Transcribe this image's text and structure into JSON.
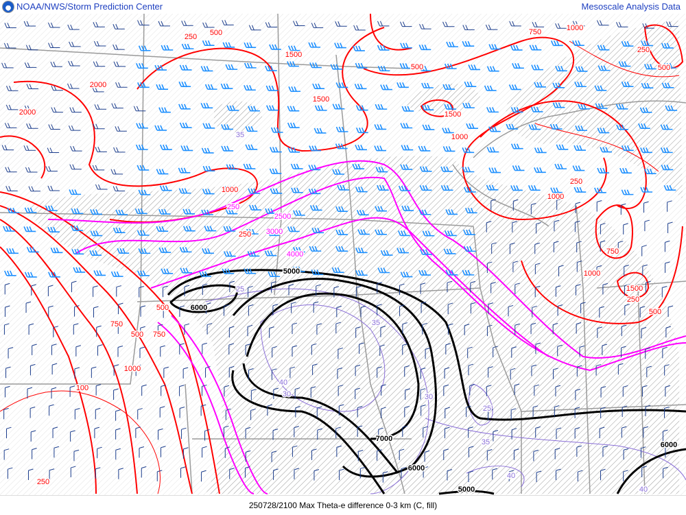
{
  "header": {
    "title_left": "NOAA/NWS/Storm Prediction Center",
    "title_right": "Mesoscale Analysis Data",
    "logo": "noaa-logo"
  },
  "footer": {
    "caption": "250728/2100 Max Theta-e difference 0-3 km (C, fill)"
  },
  "colors": {
    "title": "#1d3fc0",
    "red_contours": "#ff0000",
    "magenta_contours": "#ff00ff",
    "black_contours": "#000000",
    "purple_contours": "#8a6fd8",
    "wind_barbs_blue": "#1e90ff",
    "wind_barbs_dark": "#1a3c8c",
    "borders": "#9a9a9a"
  },
  "map": {
    "contour_labels": [
      "250",
      "500",
      "750",
      "1000",
      "1500",
      "2000",
      "2000",
      "1500",
      "1500",
      "1000",
      "500",
      "250",
      "1000",
      "250",
      "500",
      "750",
      "1000",
      "1500",
      "250",
      "500",
      "750",
      "500",
      "750",
      "1000",
      "100",
      "250",
      "250",
      "2500",
      "3000",
      "4000",
      "5000",
      "6000",
      "7000",
      "6000",
      "5000",
      "6000",
      "25",
      "30",
      "35",
      "40",
      "30",
      "25",
      "35",
      "40",
      "40",
      "35",
      "1000",
      "500",
      "250"
    ]
  }
}
